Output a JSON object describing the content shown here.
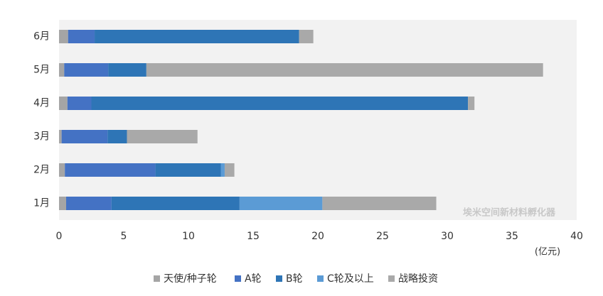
{
  "chart_data": {
    "type": "stacked-bar-horizontal",
    "unit_label": "(亿元)",
    "watermark": "埃米空间新材料孵化器",
    "categories": [
      "1月",
      "2月",
      "3月",
      "4月",
      "5月",
      "6月"
    ],
    "series": [
      {
        "name": "天使/种子轮",
        "color": "#a5a5a5",
        "values": [
          0.55,
          0.45,
          0.2,
          0.65,
          0.4,
          0.7
        ]
      },
      {
        "name": "A轮",
        "color": "#4472c4",
        "values": [
          3.5,
          7.0,
          3.55,
          1.85,
          3.4,
          2.05
        ]
      },
      {
        "name": "B轮",
        "color": "#2e75b6",
        "values": [
          9.9,
          5.05,
          1.5,
          29.1,
          2.95,
          15.8
        ]
      },
      {
        "name": "C轮及以上",
        "color": "#5b9bd5",
        "values": [
          6.4,
          0.3,
          0,
          0,
          0,
          0
        ]
      },
      {
        "name": "战略投资",
        "color": "#a9a9a9",
        "values": [
          8.8,
          0.75,
          5.45,
          0.5,
          30.65,
          1.1
        ]
      }
    ],
    "xlim": [
      0,
      40
    ],
    "xticks": [
      0,
      5,
      10,
      15,
      20,
      25,
      30,
      35,
      40
    ],
    "legend": "bottom"
  }
}
